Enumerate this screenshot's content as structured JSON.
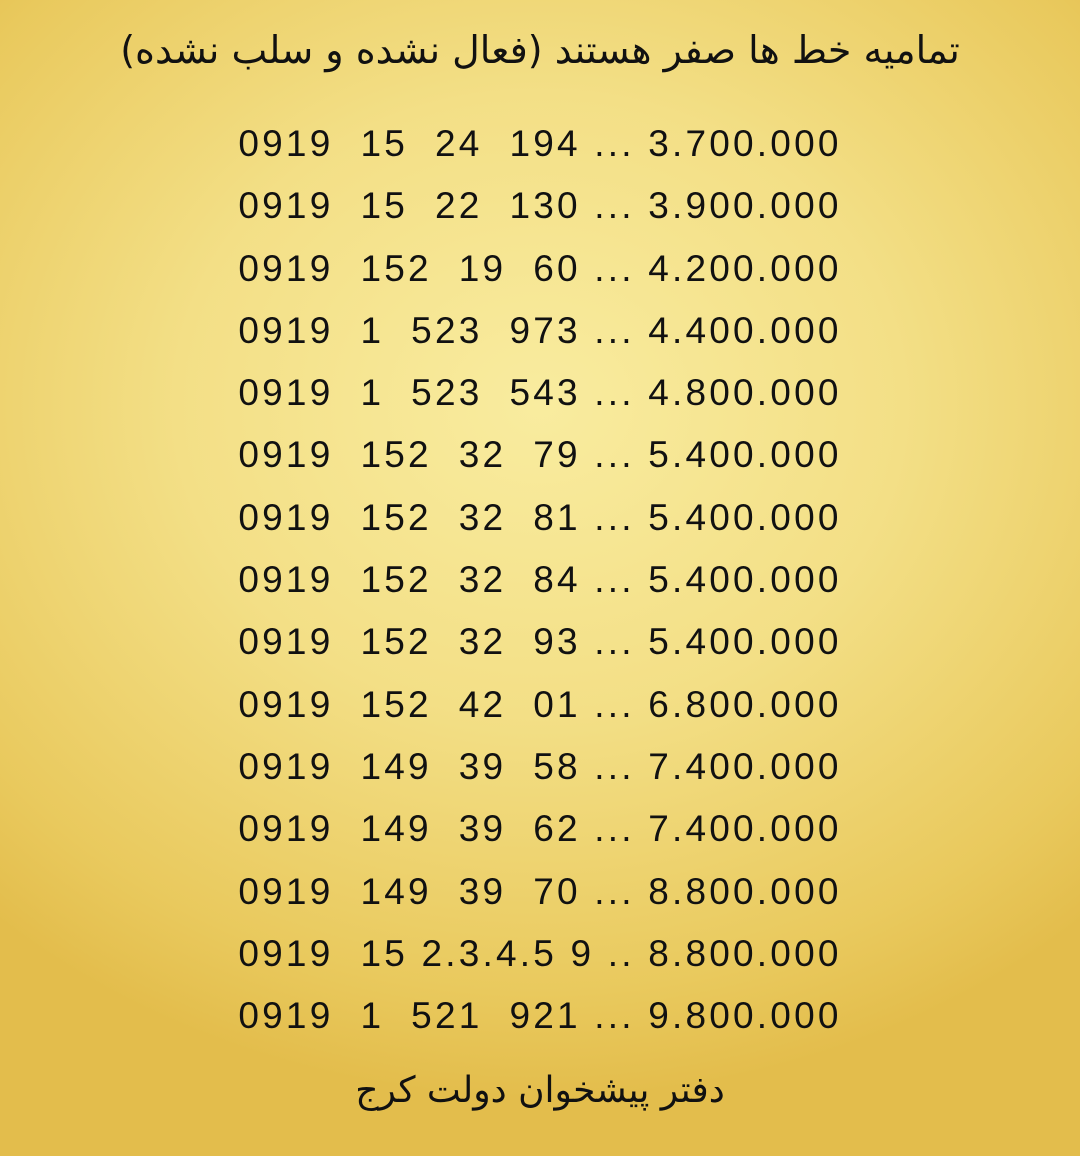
{
  "title": "تمامیه خط ها صفر هستند (فعال نشده و سلب نشده)",
  "listings": [
    {
      "number": "0919  15  24  194",
      "separator": " ... ",
      "price": "3.700.000"
    },
    {
      "number": "0919  15  22  130",
      "separator": " ... ",
      "price": "3.900.000"
    },
    {
      "number": "0919  152  19  60",
      "separator": " ... ",
      "price": "4.200.000"
    },
    {
      "number": "0919  1  523  973",
      "separator": " ... ",
      "price": "4.400.000"
    },
    {
      "number": "0919  1  523  543",
      "separator": " ... ",
      "price": "4.800.000"
    },
    {
      "number": "0919  152  32  79",
      "separator": " ... ",
      "price": "5.400.000"
    },
    {
      "number": "0919  152  32  81",
      "separator": " ... ",
      "price": "5.400.000"
    },
    {
      "number": "0919  152  32  84",
      "separator": " ... ",
      "price": "5.400.000"
    },
    {
      "number": "0919  152  32  93",
      "separator": " ... ",
      "price": "5.400.000"
    },
    {
      "number": "0919  152  42  01",
      "separator": " ... ",
      "price": "6.800.000"
    },
    {
      "number": "0919  149  39  58",
      "separator": " ... ",
      "price": "7.400.000"
    },
    {
      "number": "0919  149  39  62",
      "separator": " ... ",
      "price": "7.400.000"
    },
    {
      "number": "0919  149  39  70",
      "separator": " ... ",
      "price": "8.800.000"
    },
    {
      "number": "0919  15 2.3.4.5 9",
      "separator": " .. ",
      "price": "8.800.000"
    },
    {
      "number": "0919  1  521  921",
      "separator": " ... ",
      "price": "9.800.000"
    }
  ],
  "footer": "دفتر پیشخوان دولت کرج",
  "colors": {
    "background_light": "#f9ec9f",
    "background_dark": "#e3bd4c",
    "text": "#111111"
  }
}
